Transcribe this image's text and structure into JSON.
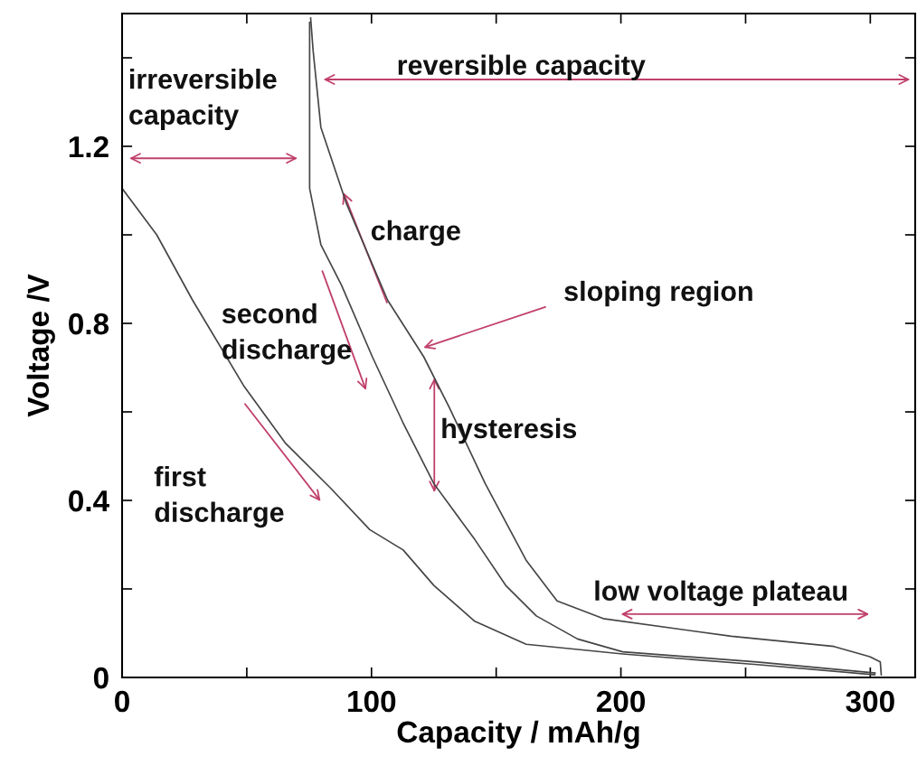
{
  "chart_data": {
    "type": "line",
    "xlabel": "Capacity / mAh/g",
    "ylabel": "Voltage /V",
    "xlim": [
      0,
      318
    ],
    "ylim": [
      0,
      1.5
    ],
    "xticks": [
      0,
      {
        "value": 50,
        "label": null
      },
      100,
      {
        "value": 150,
        "label": null
      },
      200,
      {
        "value": 250,
        "label": null
      },
      300
    ],
    "yticks": [
      0,
      {
        "value": 0.2,
        "label": null
      },
      0.4,
      {
        "value": 0.6,
        "label": null
      },
      0.8,
      {
        "value": 1.0,
        "label": null
      },
      1.2,
      {
        "value": 1.4,
        "label": null
      }
    ],
    "grid": false,
    "marker": "none",
    "line_style": "solid",
    "series": [
      {
        "color": "#454545",
        "x": [
          0,
          13.9,
          28.3,
          49,
          65.4,
          83.9,
          99.3,
          112.7,
          125,
          141.4,
          162,
          200.7,
          254.6,
          301.8
        ],
        "values": [
          1.105,
          1.0,
          0.852,
          0.657,
          0.53,
          0.426,
          0.334,
          0.288,
          0.208,
          0.127,
          0.075,
          0.053,
          0.029,
          0.006
        ]
      },
      {
        "color": "#454545",
        "x": [
          75.2,
          75.2,
          79.7,
          88.0,
          100.3,
          112.6,
          125.0,
          141.5,
          153.8,
          166.1,
          182.6,
          200.7,
          254.6,
          301.9
        ],
        "values": [
          1.48,
          1.105,
          0.978,
          0.886,
          0.725,
          0.576,
          0.438,
          0.311,
          0.208,
          0.139,
          0.087,
          0.058,
          0.035,
          0.01
        ]
      },
      {
        "color": "#454545",
        "x": [
          75.6,
          76.6,
          79.7,
          90.0,
          106.5,
          120.9,
          131.2,
          145.6,
          162.0,
          174.4,
          192.9,
          244.3,
          285.4,
          299.8,
          304.0,
          304.4
        ],
        "values": [
          1.49,
          1.416,
          1.243,
          1.07,
          0.852,
          0.725,
          0.61,
          0.438,
          0.265,
          0.173,
          0.133,
          0.093,
          0.07,
          0.047,
          0.035,
          0.006
        ]
      }
    ],
    "annotations": [
      "irreversible\ncapacity",
      "reversible capacity",
      {
        "text": "charge",
        "x": 88.7,
        "y": 1.096
      },
      {
        "text": "sloping region",
        "x": 120.8,
        "y": 0.745
      },
      "second\ndischarge",
      {
        "text": "hysteresis",
        "x": 125.2,
        "y": 0.677
      },
      "first\ndischarge",
      "low voltage plateau"
    ]
  }
}
